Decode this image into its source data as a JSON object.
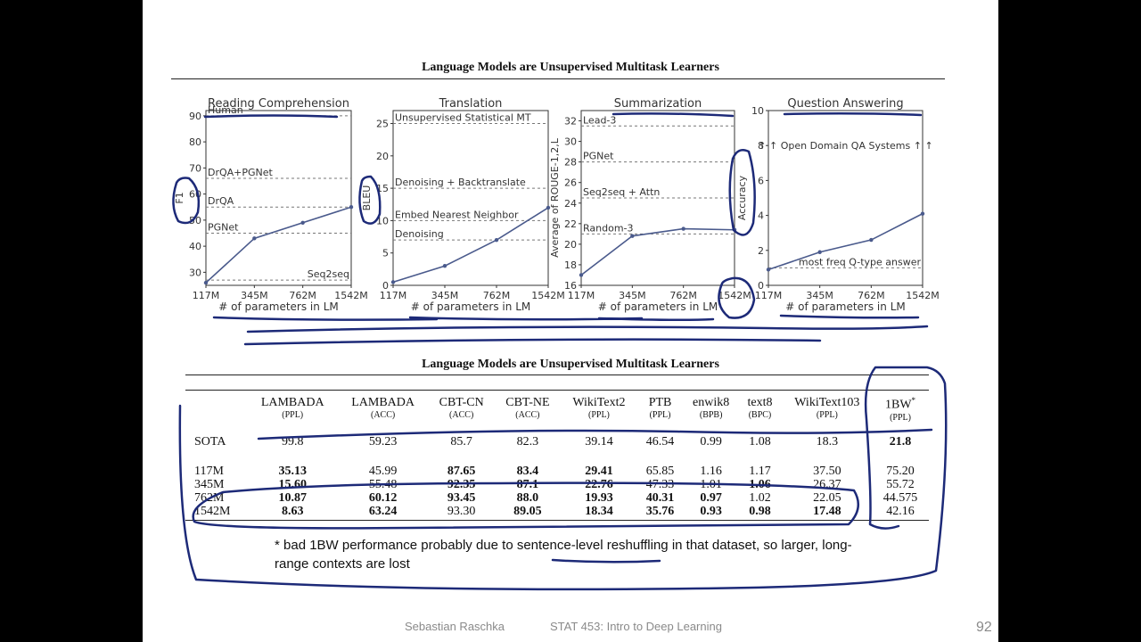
{
  "figure_title": "Language Models are Unsupervised Multitask Learners",
  "chart_data": [
    {
      "type": "line",
      "title": "Reading Comprehension",
      "xlabel": "# of parameters in LM",
      "ylabel": "F1",
      "categories": [
        "117M",
        "345M",
        "762M",
        "1542M"
      ],
      "ylim": [
        25,
        92
      ],
      "yticks": [
        30,
        40,
        50,
        60,
        70,
        80,
        90
      ],
      "series": [
        {
          "values": [
            26,
            43,
            49,
            55
          ]
        }
      ],
      "baselines": [
        {
          "label": "Human",
          "value": 90
        },
        {
          "label": "DrQA+PGNet",
          "value": 66
        },
        {
          "label": "DrQA",
          "value": 55
        },
        {
          "label": "PGNet",
          "value": 45
        },
        {
          "label": "Seq2seq",
          "value": 27
        }
      ]
    },
    {
      "type": "line",
      "title": "Translation",
      "xlabel": "# of parameters in LM",
      "ylabel": "BLEU",
      "categories": [
        "117M",
        "345M",
        "762M",
        "1542M"
      ],
      "ylim": [
        0,
        27
      ],
      "yticks": [
        0,
        5,
        10,
        15,
        20,
        25
      ],
      "series": [
        {
          "values": [
            0.5,
            3,
            7,
            12
          ]
        }
      ],
      "baselines": [
        {
          "label": "Unsupervised Statistical MT",
          "value": 25
        },
        {
          "label": "Denoising + Backtranslate",
          "value": 15
        },
        {
          "label": "Embed Nearest Neighbor",
          "value": 10
        },
        {
          "label": "Denoising",
          "value": 7
        }
      ]
    },
    {
      "type": "line",
      "title": "Summarization",
      "xlabel": "# of parameters in LM",
      "ylabel": "Average of ROUGE-1,2,L",
      "categories": [
        "117M",
        "345M",
        "762M",
        "1542M"
      ],
      "ylim": [
        16,
        33
      ],
      "yticks": [
        16,
        18,
        20,
        22,
        24,
        26,
        28,
        30,
        32
      ],
      "series": [
        {
          "values": [
            17,
            20.8,
            21.5,
            21.4
          ]
        }
      ],
      "baselines": [
        {
          "label": "Lead-3",
          "value": 31.5
        },
        {
          "label": "PGNet",
          "value": 28
        },
        {
          "label": "Seq2seq + Attn",
          "value": 24.5
        },
        {
          "label": "Random-3",
          "value": 21
        }
      ]
    },
    {
      "type": "line",
      "title": "Question Answering",
      "xlabel": "# of parameters in LM",
      "ylabel": "Accuracy",
      "categories": [
        "117M",
        "345M",
        "762M",
        "1542M"
      ],
      "ylim": [
        0,
        10
      ],
      "yticks": [
        0,
        2,
        4,
        6,
        8,
        10
      ],
      "series": [
        {
          "values": [
            0.9,
            1.9,
            2.6,
            4.1
          ]
        }
      ],
      "baselines": [
        {
          "label": "most freq Q-type answer",
          "value": 1.0
        }
      ],
      "annotation": "↑ ↑ Open Domain QA Systems ↑ ↑"
    }
  ],
  "table": {
    "title": "Language Models are Unsupervised Multitask Learners",
    "columns": [
      {
        "name": "LAMBADA",
        "unit": "(PPL)"
      },
      {
        "name": "LAMBADA",
        "unit": "(ACC)"
      },
      {
        "name": "CBT-CN",
        "unit": "(ACC)"
      },
      {
        "name": "CBT-NE",
        "unit": "(ACC)"
      },
      {
        "name": "WikiText2",
        "unit": "(PPL)"
      },
      {
        "name": "PTB",
        "unit": "(PPL)"
      },
      {
        "name": "enwik8",
        "unit": "(BPB)"
      },
      {
        "name": "text8",
        "unit": "(BPC)"
      },
      {
        "name": "WikiText103",
        "unit": "(PPL)"
      },
      {
        "name": "1BW",
        "unit": "(PPL)",
        "mark": "*"
      }
    ],
    "rows": [
      {
        "label": "SOTA",
        "cells": [
          "99.8",
          "59.23",
          "85.7",
          "82.3",
          "39.14",
          "46.54",
          "0.99",
          "1.08",
          "18.3",
          "21.8"
        ],
        "bold": [
          9
        ]
      },
      {
        "label": "117M",
        "cells": [
          "35.13",
          "45.99",
          "87.65",
          "83.4",
          "29.41",
          "65.85",
          "1.16",
          "1.17",
          "37.50",
          "75.20"
        ],
        "bold": [
          0,
          2,
          3,
          4
        ]
      },
      {
        "label": "345M",
        "cells": [
          "15.60",
          "55.48",
          "92.35",
          "87.1",
          "22.76",
          "47.33",
          "1.01",
          "1.06",
          "26.37",
          "55.72"
        ],
        "bold": [
          0,
          2,
          3,
          4,
          7
        ]
      },
      {
        "label": "762M",
        "cells": [
          "10.87",
          "60.12",
          "93.45",
          "88.0",
          "19.93",
          "40.31",
          "0.97",
          "1.02",
          "22.05",
          "44.575"
        ],
        "bold": [
          0,
          1,
          2,
          3,
          4,
          5,
          6
        ]
      },
      {
        "label": "1542M",
        "cells": [
          "8.63",
          "63.24",
          "93.30",
          "89.05",
          "18.34",
          "35.76",
          "0.93",
          "0.98",
          "17.48",
          "42.16"
        ],
        "bold": [
          0,
          1,
          3,
          4,
          5,
          6,
          7,
          8
        ]
      }
    ]
  },
  "footnote": "* bad 1BW performance probably due to sentence-level reshuffling in that dataset, so larger, long-range contexts are lost",
  "footer": {
    "author": "Sebastian Raschka",
    "course": "STAT 453: Intro to Deep Learning",
    "page": "92"
  },
  "colors": {
    "line": "#4a5a8c",
    "ink": "#1d2a78",
    "axis": "#333333",
    "baseline": "#777777"
  }
}
